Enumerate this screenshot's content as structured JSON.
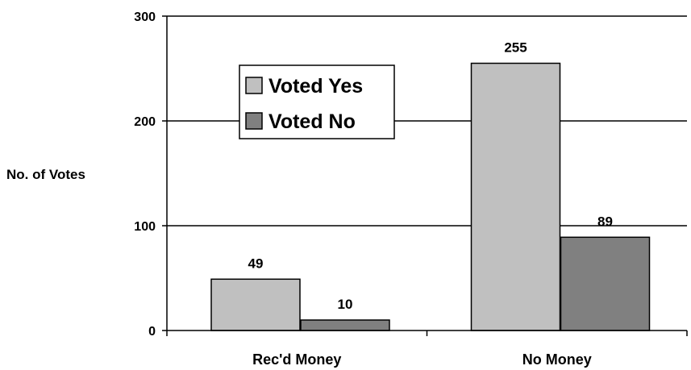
{
  "chart_data": {
    "type": "bar",
    "title": "",
    "xlabel": "",
    "ylabel": "No. of Votes",
    "ylim": [
      0,
      300
    ],
    "yticks": [
      0,
      100,
      200,
      300
    ],
    "categories": [
      "Rec'd Money",
      "No Money"
    ],
    "series": [
      {
        "name": "Voted Yes",
        "values": [
          49,
          255
        ],
        "color": "#c0c0c0"
      },
      {
        "name": "Voted No",
        "values": [
          10,
          89
        ],
        "color": "#808080"
      }
    ],
    "grid": true,
    "legend_position": "upper-left inside plot",
    "data_labels": true
  }
}
